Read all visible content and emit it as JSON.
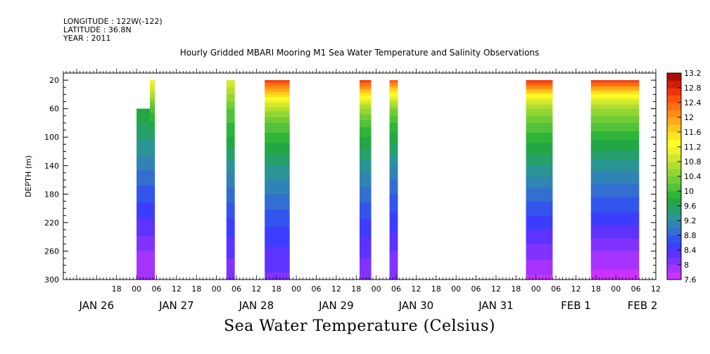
{
  "header": {
    "longitude": "LONGITUDE : 122W(-122)",
    "latitude": "LATITUDE : 36.8N",
    "year": "YEAR : 2011"
  },
  "title": "Hourly Gridded MBARI Mooring M1 Sea Water Temperature and Salinity Observations",
  "bottom_title": "Sea Water Temperature (Celsius)",
  "chart_data": {
    "type": "heatmap",
    "title": "Hourly Gridded MBARI Mooring M1 Sea Water Temperature and Salinity Observations",
    "xlabel": "",
    "ylabel": "DEPTH (m)",
    "x_units": "hours since JAN 26 00:00",
    "xlim": [
      -22,
      156
    ],
    "ylim": [
      300,
      10
    ],
    "y_inverted": true,
    "y_ticks": [
      20,
      60,
      100,
      140,
      180,
      220,
      260,
      300
    ],
    "x_hour_ticks": [
      {
        "h": -6,
        "label": "18"
      },
      {
        "h": 0,
        "label": "00"
      },
      {
        "h": 6,
        "label": "06"
      },
      {
        "h": 12,
        "label": "12"
      },
      {
        "h": 18,
        "label": "18"
      },
      {
        "h": 24,
        "label": "00"
      },
      {
        "h": 30,
        "label": "06"
      },
      {
        "h": 36,
        "label": "12"
      },
      {
        "h": 42,
        "label": "18"
      },
      {
        "h": 48,
        "label": "00"
      },
      {
        "h": 54,
        "label": "06"
      },
      {
        "h": 60,
        "label": "12"
      },
      {
        "h": 66,
        "label": "18"
      },
      {
        "h": 72,
        "label": "00"
      },
      {
        "h": 78,
        "label": "06"
      },
      {
        "h": 84,
        "label": "12"
      },
      {
        "h": 90,
        "label": "18"
      },
      {
        "h": 96,
        "label": "00"
      },
      {
        "h": 102,
        "label": "06"
      },
      {
        "h": 108,
        "label": "12"
      },
      {
        "h": 114,
        "label": "18"
      },
      {
        "h": 120,
        "label": "00"
      },
      {
        "h": 126,
        "label": "06"
      },
      {
        "h": 132,
        "label": "12"
      },
      {
        "h": 138,
        "label": "18"
      },
      {
        "h": 144,
        "label": "00"
      },
      {
        "h": 150,
        "label": "06"
      },
      {
        "h": 156,
        "label": "12"
      }
    ],
    "x_day_labels": [
      {
        "h": -12,
        "label": "JAN 26"
      },
      {
        "h": 12,
        "label": "JAN 27"
      },
      {
        "h": 36,
        "label": "JAN 28"
      },
      {
        "h": 60,
        "label": "JAN 29"
      },
      {
        "h": 84,
        "label": "JAN 30"
      },
      {
        "h": 108,
        "label": "JAN 31"
      },
      {
        "h": 132,
        "label": "FEB  1"
      },
      {
        "h": 152,
        "label": "FEB  2"
      }
    ],
    "colorbar": {
      "levels": [
        7.6,
        7.8,
        8.0,
        8.2,
        8.4,
        8.6,
        8.8,
        9.0,
        9.2,
        9.4,
        9.6,
        9.8,
        10.0,
        10.2,
        10.4,
        10.6,
        10.8,
        11.0,
        11.2,
        11.4,
        11.6,
        11.8,
        12.0,
        12.2,
        12.4,
        12.6,
        12.8,
        13.0,
        13.2
      ],
      "labels": [
        "7.6",
        "8",
        "8.4",
        "8.8",
        "9.2",
        "9.6",
        "10",
        "10.4",
        "10.8",
        "11.2",
        "11.6",
        "12",
        "12.4",
        "12.8",
        "13.2"
      ],
      "colors": [
        "#cc33ff",
        "#a633ff",
        "#8033ff",
        "#5c33ff",
        "#3d3dff",
        "#3355ee",
        "#336fd0",
        "#2f84b4",
        "#2b9494",
        "#27a06a",
        "#23a745",
        "#2fb53a",
        "#52c23a",
        "#72cc35",
        "#92d635",
        "#b2de30",
        "#d2e82c",
        "#eef22a",
        "#ffff22",
        "#ffe41f",
        "#ffc81c",
        "#ffaa19",
        "#ff8c16",
        "#ff6e12",
        "#ff500e",
        "#ee320a",
        "#d01e07",
        "#aa0e04"
      ]
    },
    "segments": [
      {
        "h0": 0.0,
        "h1": 4.0,
        "top_depth": 60,
        "profile": [
          [
            60,
            9.75
          ],
          [
            100,
            9.45
          ],
          [
            140,
            9.05
          ],
          [
            180,
            8.7
          ],
          [
            220,
            8.35
          ],
          [
            260,
            8.0
          ],
          [
            300,
            7.8
          ]
        ]
      },
      {
        "h0": 4.0,
        "h1": 5.5,
        "top_depth": 20,
        "profile": [
          [
            20,
            11.2
          ],
          [
            40,
            10.7
          ],
          [
            60,
            10.1
          ],
          [
            100,
            9.45
          ],
          [
            140,
            9.05
          ],
          [
            180,
            8.7
          ],
          [
            220,
            8.35
          ],
          [
            260,
            8.0
          ],
          [
            300,
            7.8
          ]
        ]
      },
      {
        "h0": 27.0,
        "h1": 29.5,
        "top_depth": 20,
        "profile": [
          [
            20,
            11.0
          ],
          [
            40,
            10.6
          ],
          [
            60,
            10.2
          ],
          [
            100,
            9.8
          ],
          [
            140,
            9.3
          ],
          [
            180,
            8.9
          ],
          [
            220,
            8.55
          ],
          [
            260,
            8.25
          ],
          [
            300,
            8.05
          ]
        ]
      },
      {
        "h0": 38.5,
        "h1": 46.0,
        "top_depth": 20,
        "profile": [
          [
            20,
            12.7
          ],
          [
            30,
            12.1
          ],
          [
            45,
            11.3
          ],
          [
            60,
            10.7
          ],
          [
            80,
            10.2
          ],
          [
            100,
            9.9
          ],
          [
            140,
            9.4
          ],
          [
            180,
            9.0
          ],
          [
            220,
            8.65
          ],
          [
            260,
            8.35
          ],
          [
            300,
            8.15
          ]
        ]
      },
      {
        "h0": 67.0,
        "h1": 70.5,
        "top_depth": 20,
        "profile": [
          [
            20,
            12.7
          ],
          [
            30,
            12.1
          ],
          [
            45,
            11.2
          ],
          [
            60,
            10.6
          ],
          [
            80,
            10.1
          ],
          [
            100,
            9.8
          ],
          [
            140,
            9.3
          ],
          [
            180,
            8.9
          ],
          [
            220,
            8.55
          ],
          [
            260,
            8.25
          ],
          [
            300,
            8.05
          ]
        ]
      },
      {
        "h0": 76.0,
        "h1": 78.5,
        "top_depth": 20,
        "profile": [
          [
            20,
            12.5
          ],
          [
            30,
            11.8
          ],
          [
            45,
            11.0
          ],
          [
            60,
            10.4
          ],
          [
            80,
            10.0
          ],
          [
            100,
            9.7
          ],
          [
            140,
            9.2
          ],
          [
            180,
            8.8
          ],
          [
            220,
            8.5
          ],
          [
            260,
            8.2
          ],
          [
            300,
            8.0
          ]
        ]
      },
      {
        "h0": 117.0,
        "h1": 125.0,
        "top_depth": 20,
        "profile": [
          [
            20,
            12.8
          ],
          [
            30,
            12.1
          ],
          [
            45,
            11.1
          ],
          [
            60,
            10.6
          ],
          [
            80,
            10.2
          ],
          [
            100,
            9.9
          ],
          [
            140,
            9.4
          ],
          [
            180,
            8.9
          ],
          [
            220,
            8.5
          ],
          [
            260,
            8.1
          ],
          [
            300,
            7.75
          ]
        ]
      },
      {
        "h0": 136.5,
        "h1": 151.0,
        "top_depth": 20,
        "profile": [
          [
            20,
            12.7
          ],
          [
            30,
            12.0
          ],
          [
            45,
            11.1
          ],
          [
            60,
            10.6
          ],
          [
            80,
            10.2
          ],
          [
            100,
            9.85
          ],
          [
            140,
            9.3
          ],
          [
            180,
            8.85
          ],
          [
            220,
            8.45
          ],
          [
            260,
            8.0
          ],
          [
            300,
            7.7
          ]
        ]
      }
    ]
  }
}
